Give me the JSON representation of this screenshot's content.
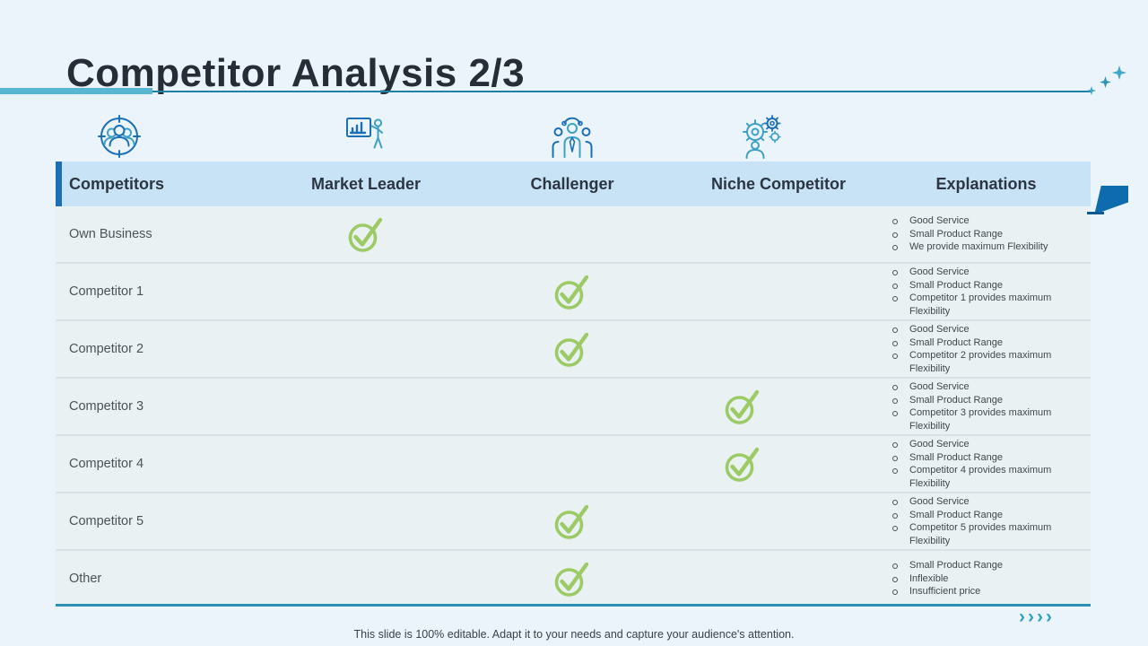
{
  "slide": {
    "title": "Competitor Analysis 2/3",
    "caption": "This slide is 100% editable. Adapt it to your needs and capture your audience's attention.",
    "nav_arrows": "››››"
  },
  "table": {
    "columns": [
      {
        "label": "Competitors",
        "icon": "audience-target-icon"
      },
      {
        "label": "Market Leader",
        "icon": "presenter-chart-icon"
      },
      {
        "label": "Challenger",
        "icon": "team-people-icon"
      },
      {
        "label": "Niche Competitor",
        "icon": "person-gears-icon"
      },
      {
        "label": "Explanations",
        "icon": ""
      }
    ],
    "rows": [
      {
        "label": "Own Business",
        "check_in": "market_leader",
        "explanations": [
          "Good Service",
          "Small Product Range",
          "We provide maximum Flexibility"
        ]
      },
      {
        "label": "Competitor 1",
        "check_in": "challenger",
        "explanations": [
          "Good Service",
          "Small Product Range",
          "Competitor 1 provides maximum Flexibility"
        ]
      },
      {
        "label": "Competitor 2",
        "check_in": "challenger",
        "explanations": [
          "Good Service",
          "Small Product Range",
          "Competitor 2 provides maximum Flexibility"
        ]
      },
      {
        "label": "Competitor 3",
        "check_in": "niche_competitor",
        "explanations": [
          "Good Service",
          "Small Product Range",
          "Competitor 3 provides maximum Flexibility"
        ]
      },
      {
        "label": "Competitor 4",
        "check_in": "niche_competitor",
        "explanations": [
          "Good Service",
          "Small Product Range",
          "Competitor 4 provides maximum Flexibility"
        ]
      },
      {
        "label": "Competitor 5",
        "check_in": "challenger",
        "explanations": [
          "Good Service",
          "Small Product Range",
          "Competitor 5 provides maximum Flexibility"
        ]
      },
      {
        "label": "Other",
        "check_in": "challenger",
        "explanations": [
          "Small Product Range",
          "Inflexible",
          "Insufficient price"
        ]
      }
    ]
  },
  "colors": {
    "background": "#EBF4FA",
    "header_bg": "#C9E3F6",
    "header_accent_blue": "#1B6FB5",
    "row_bg": "#E9F1F2",
    "check_green": "#9CCB66",
    "rule_teal_thick": "#58B6D3",
    "rule_teal_thin": "#1F81A5",
    "ribbon_blue": "#0E6BAE",
    "icon_dark_blue": "#1B6FB5",
    "icon_teal": "#3FA0C4"
  }
}
